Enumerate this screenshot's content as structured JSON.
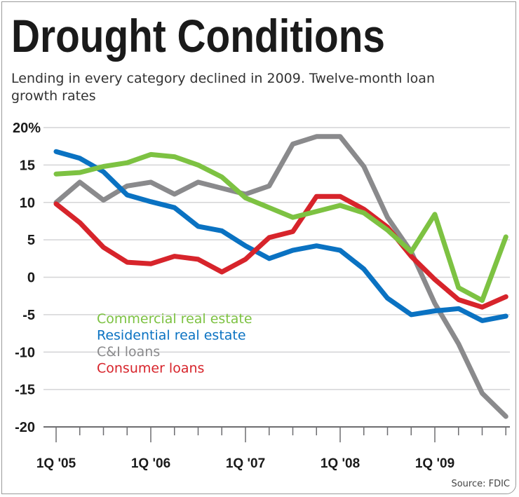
{
  "title": "Drought Conditions",
  "subtitle_line1": "Lending in every category declined in 2009. Twelve-month loan",
  "subtitle_line2": "growth rates",
  "source": "Source: FDIC",
  "chart_data": {
    "type": "line",
    "title": "Drought Conditions",
    "xlabel": "",
    "ylabel": "",
    "ylim": [
      -20,
      20
    ],
    "grid": true,
    "legend_placement": "lower-left",
    "y_ticks": [
      "20%",
      "15",
      "10",
      "5",
      "0",
      "-5",
      "-10",
      "-15",
      "-20"
    ],
    "y_tick_values": [
      20,
      15,
      10,
      5,
      0,
      -5,
      -10,
      -15,
      -20
    ],
    "x_tick_labels": [
      "1Q '05",
      "1Q '06",
      "1Q '07",
      "1Q '08",
      "1Q '09"
    ],
    "x": [
      "1Q05",
      "2Q05",
      "3Q05",
      "4Q05",
      "1Q06",
      "2Q06",
      "3Q06",
      "4Q06",
      "1Q07",
      "2Q07",
      "3Q07",
      "4Q07",
      "1Q08",
      "2Q08",
      "3Q08",
      "4Q08",
      "1Q09",
      "2Q09",
      "3Q09",
      "4Q09"
    ],
    "series": [
      {
        "name": "Commercial real estate",
        "color": "#7dc242",
        "values": [
          13.8,
          14.0,
          14.8,
          15.3,
          16.4,
          16.1,
          15.0,
          13.4,
          10.6,
          9.3,
          8.0,
          8.8,
          9.6,
          8.6,
          6.3,
          3.4,
          8.4,
          -1.4,
          -3.1,
          5.4
        ]
      },
      {
        "name": "Residential real estate",
        "color": "#0a72c2",
        "values": [
          16.8,
          15.9,
          14.1,
          11.0,
          10.1,
          9.3,
          6.8,
          6.2,
          4.2,
          2.5,
          3.6,
          4.2,
          3.6,
          1.1,
          -2.8,
          -5.0,
          -4.5,
          -4.2,
          -5.8,
          -5.2
        ]
      },
      {
        "name": "C&I loans",
        "color": "#8a8a8c",
        "values": [
          10.0,
          12.7,
          10.3,
          12.2,
          12.7,
          11.1,
          12.7,
          11.9,
          11.1,
          12.2,
          17.8,
          18.8,
          18.8,
          14.8,
          8.0,
          3.4,
          -3.5,
          -8.9,
          -15.5,
          -18.6
        ]
      },
      {
        "name": "Consumer loans",
        "color": "#d7242b",
        "values": [
          9.8,
          7.3,
          4.0,
          2.0,
          1.8,
          2.8,
          2.4,
          0.7,
          2.4,
          5.3,
          6.1,
          10.8,
          10.8,
          9.1,
          6.7,
          2.8,
          -0.3,
          -3.0,
          -4.0,
          -2.6
        ]
      }
    ]
  }
}
